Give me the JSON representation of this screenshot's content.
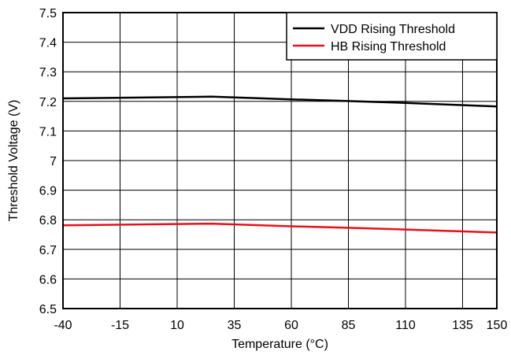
{
  "chart_data": {
    "type": "line",
    "title": "",
    "xlabel": "Temperature (°C)",
    "ylabel": "Threshold Voltage (V)",
    "x_ticks": [
      -40,
      -15,
      10,
      35,
      60,
      85,
      110,
      135,
      150
    ],
    "y_ticks": [
      6.5,
      6.6,
      6.7,
      6.8,
      6.9,
      7,
      7.1,
      7.2,
      7.3,
      7.4,
      7.5
    ],
    "x_tick_labels": [
      "-40",
      "-15",
      "10",
      "35",
      "60",
      "85",
      "110",
      "135",
      "150"
    ],
    "y_tick_labels": [
      "6.5",
      "6.6",
      "6.7",
      "6.8",
      "6.9",
      "7",
      "7.1",
      "7.2",
      "7.3",
      "7.4",
      "7.5"
    ],
    "xlim": [
      -40,
      150
    ],
    "ylim": [
      6.5,
      7.5
    ],
    "grid": true,
    "legend_position": "top-right",
    "series": [
      {
        "name": "VDD Rising Threshold",
        "color": "#000000",
        "x": [
          -40,
          25,
          60,
          85,
          110,
          150
        ],
        "y": [
          7.21,
          7.216,
          7.207,
          7.201,
          7.195,
          7.183
        ]
      },
      {
        "name": "HB Rising Threshold",
        "color": "#e8101a",
        "x": [
          -40,
          25,
          60,
          85,
          110,
          150
        ],
        "y": [
          6.781,
          6.787,
          6.778,
          6.773,
          6.767,
          6.757
        ]
      }
    ]
  }
}
